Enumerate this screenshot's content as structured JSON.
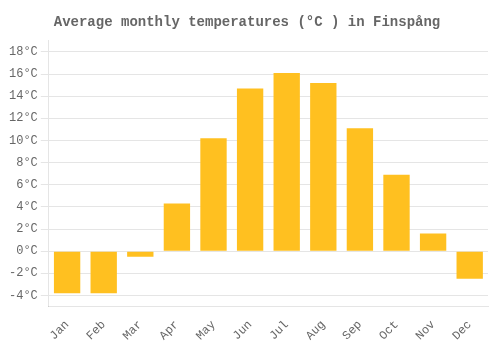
{
  "chart_data": {
    "type": "bar",
    "title": "Average monthly temperatures (°C ) in Finspång",
    "categories": [
      "Jan",
      "Feb",
      "Mar",
      "Apr",
      "May",
      "Jun",
      "Jul",
      "Aug",
      "Sep",
      "Oct",
      "Nov",
      "Dec"
    ],
    "values": [
      -3.8,
      -3.8,
      -0.5,
      4.3,
      10.2,
      14.7,
      16.1,
      15.2,
      11.1,
      6.9,
      1.6,
      -2.5
    ],
    "color": "#FFC020",
    "ylim": [
      -5,
      19
    ],
    "yticks": [
      {
        "value": -4,
        "label": "-4°C"
      },
      {
        "value": -2,
        "label": "-2°C"
      },
      {
        "value": 0,
        "label": "0°C"
      },
      {
        "value": 2,
        "label": "2°C"
      },
      {
        "value": 4,
        "label": "4°C"
      },
      {
        "value": 6,
        "label": "6°C"
      },
      {
        "value": 8,
        "label": "8°C"
      },
      {
        "value": 10,
        "label": "10°C"
      },
      {
        "value": 12,
        "label": "12°C"
      },
      {
        "value": 14,
        "label": "14°C"
      },
      {
        "value": 16,
        "label": "16°C"
      },
      {
        "value": 18,
        "label": "18°C"
      }
    ],
    "grid": true
  }
}
